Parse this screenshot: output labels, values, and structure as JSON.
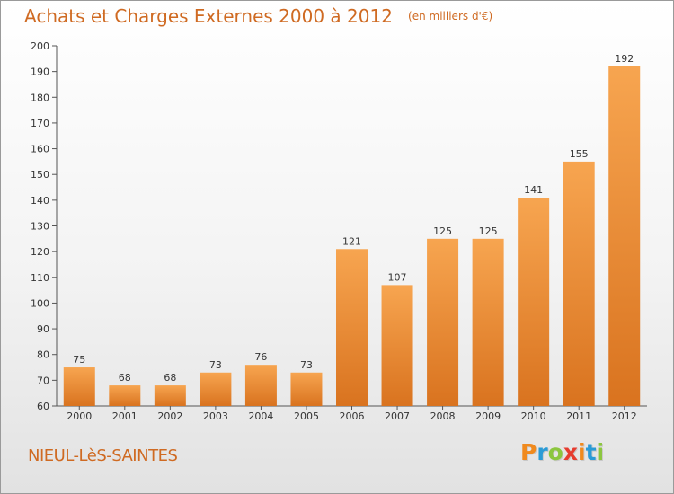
{
  "header": {
    "title": "Achats et Charges Externes 2000 à 2012",
    "subtitle": "(en milliers d'€)"
  },
  "footer": {
    "commune": "NIEUL-LèS-SAINTES",
    "brand": "Proxiti",
    "brand_colors": [
      "#f08a1e",
      "#2a9bd6",
      "#8cc63f",
      "#e63c2f",
      "#f08a1e",
      "#2a9bd6",
      "#8cc63f"
    ]
  },
  "colors": {
    "bar_top": "#f7a550",
    "bar_bottom": "#d9731f",
    "accent_text": "#cf6a22",
    "axis": "#555555"
  },
  "chart_data": {
    "type": "bar",
    "title": "Achats et Charges Externes 2000 à 2012",
    "subtitle": "(en milliers d'€)",
    "xlabel": "",
    "ylabel": "",
    "categories": [
      "2000",
      "2001",
      "2002",
      "2003",
      "2004",
      "2005",
      "2006",
      "2007",
      "2008",
      "2009",
      "2010",
      "2011",
      "2012"
    ],
    "values": [
      75,
      68,
      68,
      73,
      76,
      73,
      121,
      107,
      125,
      125,
      141,
      155,
      192
    ],
    "ylim": [
      60,
      200
    ],
    "yticks": [
      60,
      70,
      80,
      90,
      100,
      110,
      120,
      130,
      140,
      150,
      160,
      170,
      180,
      190,
      200
    ],
    "grid": false,
    "legend": "none"
  }
}
